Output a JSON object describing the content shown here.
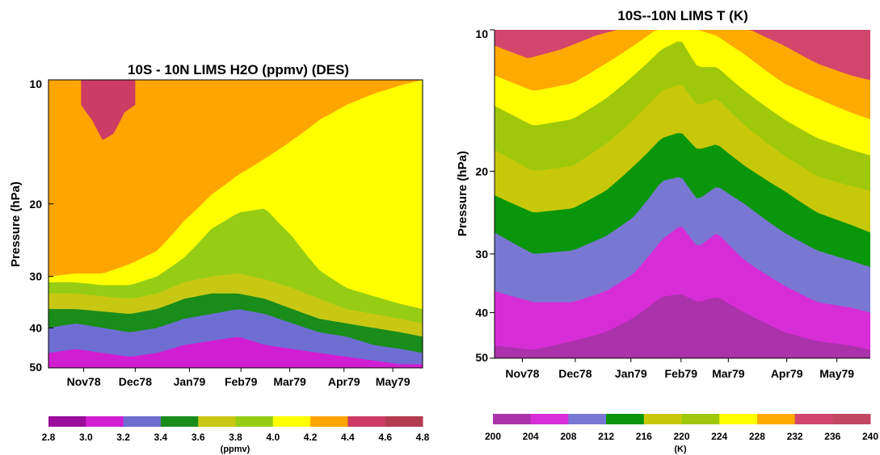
{
  "chart_data": [
    {
      "type": "heatmap",
      "title": "10S - 10N LIMS H2O (ppmv) (DES)",
      "ylabel": "Pressure (hPa)",
      "y_scale": "log",
      "y_reversed": true,
      "ylim": [
        50,
        10
      ],
      "y_ticks": [
        "10",
        "20",
        "30",
        "40",
        "50"
      ],
      "y_tick_values": [
        10,
        20,
        30,
        40,
        50
      ],
      "x_ticks": [
        "Nov78",
        "Dec78",
        "Jan79",
        "Feb79",
        "Mar79",
        "Apr79",
        "May79"
      ],
      "x_tick_values": [
        0.65,
        1.6,
        2.6,
        3.55,
        4.45,
        5.45,
        6.35
      ],
      "xlim": [
        0,
        6.9
      ],
      "colorbar": {
        "label": "(ppmv)",
        "levels": [
          "2.8",
          "3.0",
          "3.2",
          "3.4",
          "3.6",
          "3.8",
          "4.0",
          "4.2",
          "4.4",
          "4.6",
          "4.8"
        ],
        "level_values": [
          2.8,
          3.0,
          3.2,
          3.4,
          3.6,
          3.8,
          4.0,
          4.2,
          4.4,
          4.6,
          4.8
        ],
        "colors": [
          "#9c0a9c",
          "#d21ed2",
          "#6e6ed2",
          "#1a8c1a",
          "#c8c814",
          "#96cd14",
          "#ffff00",
          "#ffa500",
          "#cd3c64",
          "#b43c50"
        ]
      },
      "boundaries": [
        {
          "value": 3.2,
          "months": [
            0,
            0.5,
            1,
            1.5,
            2,
            2.5,
            3,
            3.5,
            4,
            4.5,
            5,
            5.5,
            6,
            6.5,
            6.9
          ],
          "pressure_hPa": [
            46,
            45,
            46,
            47,
            46,
            44,
            43,
            42,
            44,
            45,
            46,
            47,
            48,
            49,
            49
          ]
        },
        {
          "value": 3.4,
          "months": [
            0,
            0.5,
            1,
            1.5,
            2,
            2.5,
            3,
            3.5,
            4,
            4.5,
            5,
            5.5,
            6,
            6.5,
            6.9
          ],
          "pressure_hPa": [
            40,
            39,
            40,
            41,
            40,
            38,
            37,
            36,
            37,
            39,
            41,
            42,
            44,
            45,
            46
          ]
        },
        {
          "value": 3.6,
          "months": [
            0,
            0.5,
            1,
            1.5,
            2,
            2.5,
            3,
            3.5,
            4,
            4.5,
            5,
            5.5,
            6,
            6.5,
            6.9
          ],
          "pressure_hPa": [
            36,
            36,
            36.5,
            37,
            36,
            34,
            33,
            33,
            34,
            36,
            38,
            39,
            40,
            41,
            42
          ]
        },
        {
          "value": 3.8,
          "months": [
            0,
            0.5,
            1,
            1.5,
            2,
            2.5,
            3,
            3.5,
            4,
            4.5,
            5,
            5.5,
            6,
            6.5,
            6.9
          ],
          "pressure_hPa": [
            33,
            33,
            33.5,
            34,
            33,
            31,
            30,
            29.5,
            30.5,
            32,
            34,
            36,
            37,
            38,
            39
          ]
        },
        {
          "value": 4.0,
          "months": [
            0,
            0.5,
            1,
            1.5,
            2,
            2.5,
            3,
            3.5,
            4,
            4.5,
            5,
            5.5,
            6,
            6.5,
            6.9
          ],
          "pressure_hPa": [
            31,
            31,
            31.5,
            31.5,
            30,
            27,
            23,
            21,
            20.5,
            24,
            29,
            32,
            33.5,
            35,
            36
          ]
        },
        {
          "value": 4.2,
          "months": [
            0,
            0.5,
            1,
            1.5,
            2,
            2.5,
            3,
            3.5,
            4,
            4.5,
            5,
            5.5,
            6,
            6.5,
            6.9
          ],
          "pressure_hPa": [
            30,
            29.5,
            29.5,
            28,
            26,
            22,
            19,
            17,
            15.5,
            14,
            12.5,
            11.5,
            10.8,
            10.3,
            10
          ]
        },
        {
          "value": 4.4,
          "months": [
            0.6,
            0.8,
            1.0,
            1.2,
            1.4,
            1.6
          ],
          "pressure_hPa": [
            11.5,
            12.5,
            14,
            13.5,
            12,
            11.5
          ]
        }
      ]
    },
    {
      "type": "heatmap",
      "title": "10S--10N LIMS T (K)",
      "ylabel": "Pressure (hPa)",
      "y_scale": "log",
      "y_reversed": true,
      "ylim": [
        50,
        10
      ],
      "y_ticks": [
        "10",
        "20",
        "30",
        "40",
        "50"
      ],
      "y_tick_values": [
        10,
        20,
        30,
        40,
        50
      ],
      "x_ticks": [
        "Nov78",
        "Dec78",
        "Jan79",
        "Feb79",
        "Mar79",
        "Apr79",
        "May79"
      ],
      "x_tick_values": [
        0.5,
        1.45,
        2.45,
        3.35,
        4.2,
        5.25,
        6.15
      ],
      "xlim": [
        0,
        6.75
      ],
      "colorbar": {
        "label": "(K)",
        "levels": [
          "200",
          "204",
          "208",
          "212",
          "216",
          "220",
          "224",
          "228",
          "232",
          "236",
          "240"
        ],
        "level_values": [
          200,
          204,
          208,
          212,
          216,
          220,
          224,
          228,
          232,
          236,
          240
        ],
        "colors": [
          "#aa32aa",
          "#d72dd7",
          "#7878d2",
          "#0a960a",
          "#c8c80a",
          "#a0c80a",
          "#ffff00",
          "#ffaa00",
          "#d2466e",
          "#c34660"
        ]
      },
      "boundaries": [
        {
          "value": 204,
          "months": [
            0,
            0.7,
            1.4,
            2.0,
            2.5,
            3.0,
            3.35,
            3.65,
            4.0,
            4.5,
            5.2,
            5.8,
            6.4,
            6.75
          ],
          "pressure_hPa": [
            47,
            48,
            46,
            44,
            41,
            37,
            36.5,
            38,
            37,
            40,
            44,
            46,
            47,
            48
          ]
        },
        {
          "value": 208,
          "months": [
            0,
            0.7,
            1.4,
            2.0,
            2.5,
            3.0,
            3.35,
            3.65,
            4.0,
            4.5,
            5.2,
            5.8,
            6.4,
            6.75
          ],
          "pressure_hPa": [
            36,
            38,
            38,
            36,
            33,
            28,
            26,
            29,
            27,
            31,
            35,
            38,
            39,
            40
          ]
        },
        {
          "value": 212,
          "months": [
            0,
            0.7,
            1.4,
            2.0,
            2.5,
            3.0,
            3.35,
            3.65,
            4.0,
            4.5,
            5.2,
            5.8,
            6.4,
            6.75
          ],
          "pressure_hPa": [
            27,
            30,
            29.5,
            27.5,
            25,
            21,
            20.5,
            23,
            21.5,
            23.5,
            27,
            29.5,
            31,
            32
          ]
        },
        {
          "value": 216,
          "months": [
            0,
            0.7,
            1.4,
            2.0,
            2.5,
            3.0,
            3.35,
            3.65,
            4.0,
            4.5,
            5.2,
            5.8,
            6.4,
            6.75
          ],
          "pressure_hPa": [
            22.5,
            24.5,
            24,
            22,
            19.5,
            17,
            16.5,
            18,
            17.5,
            19.5,
            22,
            24.5,
            26,
            27
          ]
        },
        {
          "value": 220,
          "months": [
            0,
            0.7,
            1.4,
            2.0,
            2.5,
            3.0,
            3.35,
            3.65,
            4.0,
            4.5,
            5.2,
            5.8,
            6.4,
            6.75
          ],
          "pressure_hPa": [
            18,
            20,
            19.5,
            17.5,
            15.5,
            13.5,
            13,
            14.5,
            14,
            16,
            18.5,
            20.5,
            21.5,
            22
          ]
        },
        {
          "value": 224,
          "months": [
            0,
            0.7,
            1.4,
            2.0,
            2.5,
            3.0,
            3.35,
            3.65,
            4.0,
            4.5,
            5.2,
            5.8,
            6.4,
            6.75
          ],
          "pressure_hPa": [
            14.5,
            16,
            15.5,
            14,
            12.5,
            11,
            10.5,
            12,
            12,
            13.5,
            15.5,
            17,
            18,
            18.5
          ]
        },
        {
          "value": 228,
          "months": [
            0,
            0.7,
            1.4,
            2.0,
            2.5,
            2.9,
            3.15,
            3.45,
            3.65,
            4.0,
            4.5,
            5.2,
            5.8,
            6.4,
            6.75
          ],
          "pressure_hPa": [
            12.5,
            13.5,
            13,
            11.8,
            10.8,
            10,
            10,
            10,
            10,
            10.3,
            11.3,
            13,
            14,
            15,
            15.5
          ]
        },
        {
          "value": 232,
          "months": [
            0,
            0.6,
            1.2,
            1.8,
            2.2,
            2.5,
            4.6,
            5.2,
            5.8,
            6.4,
            6.75
          ],
          "pressure_hPa": [
            10.8,
            11.5,
            11,
            10.3,
            10,
            10,
            10,
            10.8,
            11.8,
            12.5,
            12.8
          ]
        }
      ]
    }
  ]
}
